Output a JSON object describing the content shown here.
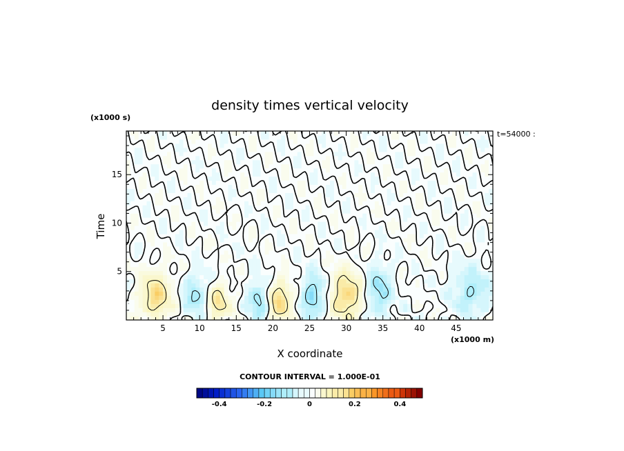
{
  "chart_data": {
    "type": "heatmap",
    "title": "density times vertical velocity",
    "xlabel": "X coordinate",
    "ylabel": "Time",
    "x_scale_label": "(x1000 m)",
    "y_scale_label": "(x1000 s)",
    "time_stamp": "t=54000 :",
    "xlim": [
      0,
      50
    ],
    "ylim": [
      0,
      19.5
    ],
    "x_ticks": [
      5,
      10,
      15,
      20,
      25,
      30,
      35,
      40,
      45
    ],
    "y_ticks": [
      5,
      10,
      15
    ],
    "contour_interval_text": "CONTOUR INTERVAL = 1.000E-01",
    "colorbar": {
      "vmin": -0.5,
      "vmax": 0.5,
      "ticks": [
        -0.4,
        -0.2,
        0,
        0.2,
        0.4
      ],
      "tick_labels": [
        "-0.4",
        "-0.2",
        "0",
        "0.2",
        "0.4"
      ]
    },
    "field_features": [
      {
        "kind": "positive",
        "x": 4.0,
        "t": 2.5,
        "amp": 0.16,
        "sx": 2.0,
        "st": 2.3
      },
      {
        "kind": "positive",
        "x": 12.5,
        "t": 1.8,
        "amp": 0.13,
        "sx": 1.6,
        "st": 1.8
      },
      {
        "kind": "positive",
        "x": 21.0,
        "t": 2.0,
        "amp": 0.16,
        "sx": 1.5,
        "st": 2.0
      },
      {
        "kind": "positive",
        "x": 30.0,
        "t": 2.5,
        "amp": 0.17,
        "sx": 2.0,
        "st": 2.5
      },
      {
        "kind": "negative",
        "x": 9.5,
        "t": 2.5,
        "amp": -0.11,
        "sx": 1.6,
        "st": 2.2
      },
      {
        "kind": "negative",
        "x": 18.0,
        "t": 2.0,
        "amp": -0.12,
        "sx": 1.3,
        "st": 2.0
      },
      {
        "kind": "negative",
        "x": 25.5,
        "t": 2.5,
        "amp": -0.14,
        "sx": 1.5,
        "st": 2.3
      },
      {
        "kind": "negative",
        "x": 34.5,
        "t": 3.0,
        "amp": -0.12,
        "sx": 1.6,
        "st": 2.6
      },
      {
        "kind": "negative",
        "x": 47.0,
        "t": 3.0,
        "amp": -0.1,
        "sx": 2.5,
        "st": 2.5
      }
    ]
  }
}
